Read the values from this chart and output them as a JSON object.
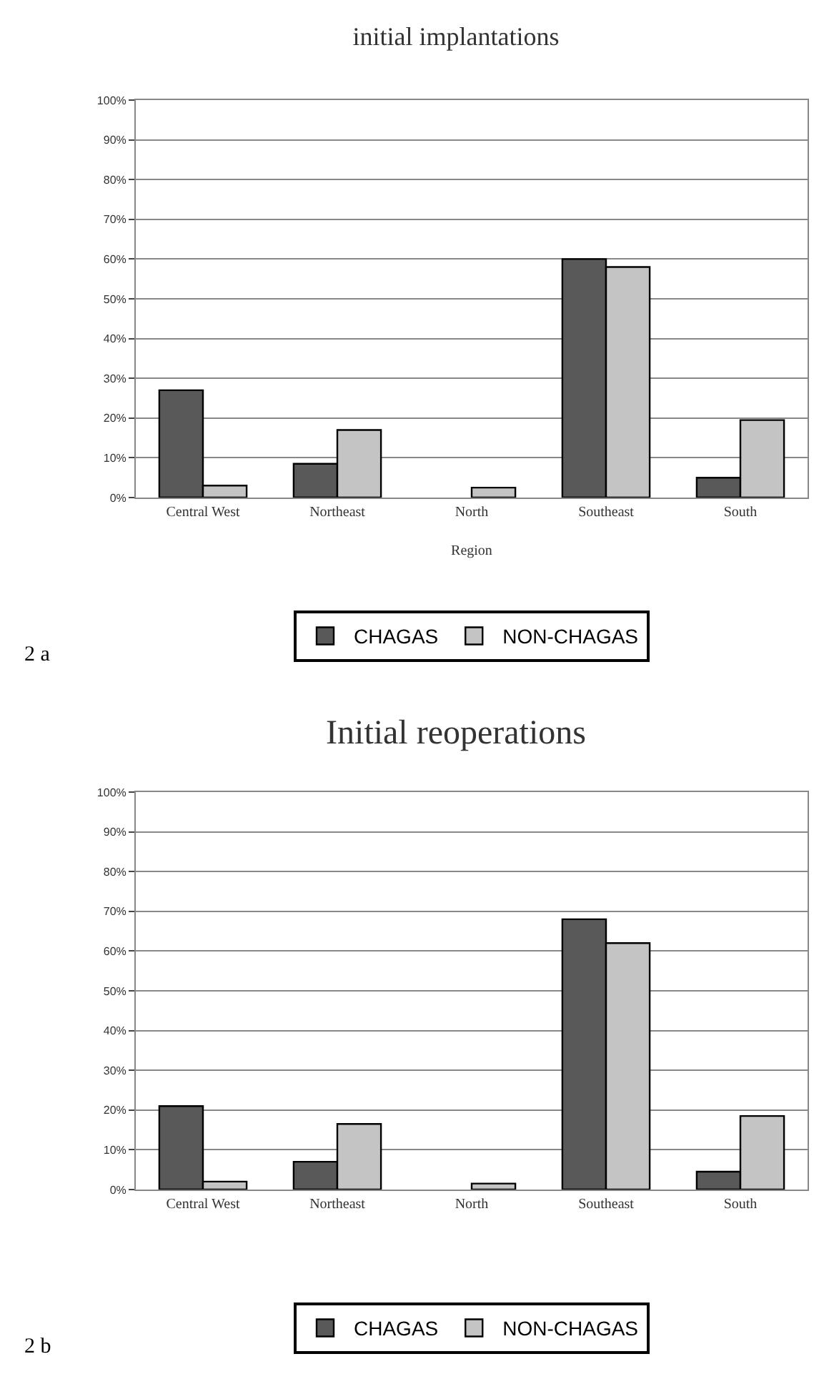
{
  "chart_data": [
    {
      "type": "bar",
      "title": "initial implantations",
      "xlabel": "Region",
      "categories": [
        "Central West",
        "Northeast",
        "North",
        "Southeast",
        "South"
      ],
      "series": [
        {
          "name": "CHAGAS",
          "color": "#595959",
          "values": [
            27,
            8.5,
            0,
            60,
            5
          ]
        },
        {
          "name": "NON-CHAGAS",
          "color": "#c4c4c4",
          "values": [
            3,
            17,
            2.5,
            58,
            19.5
          ]
        }
      ],
      "ylim": [
        0,
        100
      ],
      "yticks": [
        {
          "value": 0,
          "label": "0%"
        },
        {
          "value": 10,
          "label": "10%"
        },
        {
          "value": 20,
          "label": "20%"
        },
        {
          "value": 30,
          "label": "30%"
        },
        {
          "value": 40,
          "label": "40%"
        },
        {
          "value": 50,
          "label": "50%"
        },
        {
          "value": 60,
          "label": "60%"
        },
        {
          "value": 70,
          "label": "70%"
        },
        {
          "value": 80,
          "label": "80%"
        },
        {
          "value": 90,
          "label": "90%"
        },
        {
          "value": 100,
          "label": "100%"
        }
      ],
      "grid": "y",
      "legend": "bottom",
      "annotations": [
        "2 a"
      ]
    },
    {
      "type": "bar",
      "title": "Initial reoperations",
      "categories": [
        "Central West",
        "Northeast",
        "North",
        "Southeast",
        "South"
      ],
      "series": [
        {
          "name": "CHAGAS",
          "color": "#595959",
          "values": [
            21,
            7,
            0,
            68,
            4.5
          ]
        },
        {
          "name": "NON-CHAGAS",
          "color": "#c4c4c4",
          "values": [
            2,
            16.5,
            1.5,
            62,
            18.5
          ]
        }
      ],
      "ylim": [
        0,
        100
      ],
      "yticks": [
        {
          "value": 0,
          "label": "0%"
        },
        {
          "value": 10,
          "label": "10%"
        },
        {
          "value": 20,
          "label": "20%"
        },
        {
          "value": 30,
          "label": "30%"
        },
        {
          "value": 40,
          "label": "40%"
        },
        {
          "value": 50,
          "label": "50%"
        },
        {
          "value": 60,
          "label": "60%"
        },
        {
          "value": 70,
          "label": "70%"
        },
        {
          "value": 80,
          "label": "80%"
        },
        {
          "value": 90,
          "label": "90%"
        },
        {
          "value": 100,
          "label": "100%"
        }
      ],
      "grid": "y",
      "legend": "bottom",
      "annotations": [
        "2 b"
      ]
    }
  ]
}
